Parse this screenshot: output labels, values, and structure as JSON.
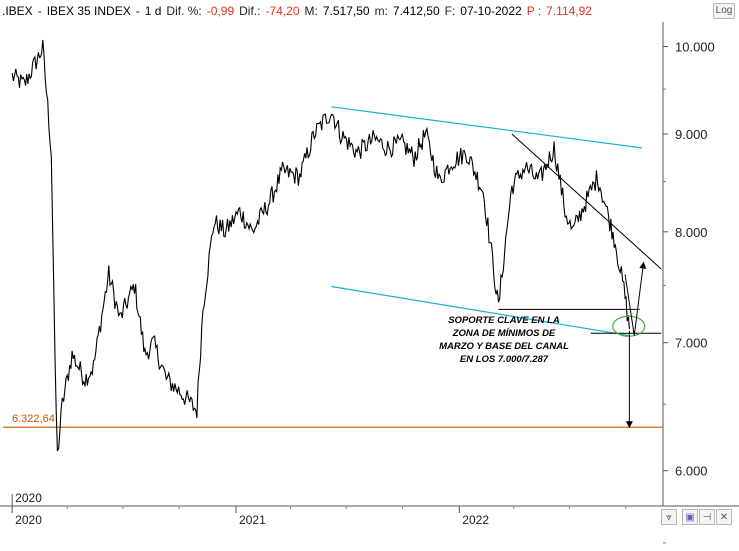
{
  "header": {
    "symbol": ".IBEX",
    "name": "IBEX 35 INDEX",
    "timeframe": "1 d",
    "dif_pct_label": "Dif. %:",
    "dif_pct": "-0,99",
    "dif_label": "Dif.:",
    "dif": "-74,20",
    "max_label": "M:",
    "max": "7.517,50",
    "min_label": "m:",
    "min": "7.412,50",
    "date_label": "F:",
    "date": "07-10-2022",
    "price_label": "P :",
    "price": "7.114,92",
    "log_button": "Log"
  },
  "colors": {
    "price": "#000000",
    "channel": "#1ab0d8",
    "support_level": "#cc5500",
    "circle": "#44aa44",
    "header_negative": "#e03020"
  },
  "icons": [
    "collapse-icon",
    "save-icon",
    "pin-icon",
    "close-icon"
  ],
  "chart_data": {
    "type": "line",
    "title": ".IBEX - IBEX 35 INDEX - 1 d",
    "x": [
      "2020-01-02",
      "2020-01-22",
      "2020-02-12",
      "2020-02-21",
      "2020-03-06",
      "2020-03-12",
      "2020-03-16",
      "2020-03-24",
      "2020-04-09",
      "2020-04-30",
      "2020-05-14",
      "2020-06-08",
      "2020-06-26",
      "2020-07-20",
      "2020-08-06",
      "2020-08-20",
      "2020-09-10",
      "2020-10-02",
      "2020-10-30",
      "2020-11-09",
      "2020-11-27",
      "2020-12-15",
      "2021-01-08",
      "2021-01-29",
      "2021-02-26",
      "2021-03-19",
      "2021-04-16",
      "2021-05-10",
      "2021-06-07",
      "2021-06-22",
      "2021-07-19",
      "2021-08-16",
      "2021-09-07",
      "2021-10-01",
      "2021-10-20",
      "2021-11-08",
      "2021-11-30",
      "2021-12-20",
      "2022-01-14",
      "2022-02-10",
      "2022-03-07",
      "2022-03-29",
      "2022-04-20",
      "2022-05-12",
      "2022-06-06",
      "2022-06-24",
      "2022-07-06",
      "2022-08-16",
      "2022-09-05",
      "2022-09-14",
      "2022-09-30",
      "2022-10-07"
    ],
    "series": [
      {
        "values": [
          9650,
          9550,
          9850,
          9980,
          8800,
          6800,
          6107,
          6500,
          6900,
          6700,
          6800,
          7600,
          7200,
          7500,
          6900,
          7000,
          6700,
          6600,
          6450,
          7300,
          8100,
          8000,
          8200,
          8000,
          8300,
          8600,
          8550,
          9000,
          9250,
          9000,
          8800,
          8950,
          8850,
          8900,
          8750,
          9000,
          8500,
          8700,
          8800,
          8400,
          7300,
          8450,
          8650,
          8500,
          8850,
          8200,
          8000,
          8550,
          8100,
          7900,
          7400,
          7115
        ]
      }
    ],
    "xlabel": "",
    "ylabel": "",
    "x_tick_labels": [
      "2020",
      "2021",
      "2022"
    ],
    "x_top_marker": "2020",
    "y_tick_labels": [
      "6.000",
      "7.000",
      "8.000",
      "9.000",
      "10.000"
    ],
    "ylim": [
      5750,
      10300
    ],
    "y_scale": "log",
    "horizontal_line_label": "6.322,64",
    "horizontal_line_value": 6322.64,
    "annotation": [
      "SOPORTE CLAVE EN LA",
      "ZONA DE MÍNIMOS DE",
      "MARZO Y BASE DEL CANAL",
      "EN LOS 7.000/7.287"
    ],
    "grid": false,
    "legend": "none"
  }
}
